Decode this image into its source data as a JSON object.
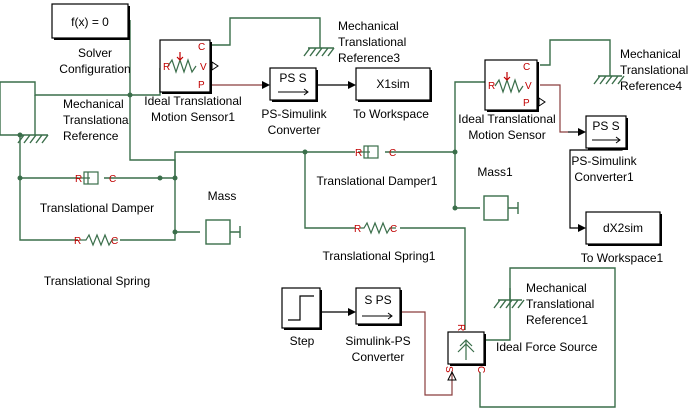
{
  "blocks": {
    "solver": {
      "expr": "f(x) = 0",
      "label_1": "Solver",
      "label_2": "Configuration"
    },
    "mech_ref": {
      "label_1": "Mechanical",
      "label_2": "Translationa",
      "label_3": "Reference"
    },
    "sensor1": {
      "label_1": "Ideal Translational",
      "label_2": "Motion Sensor1",
      "port_c": "C",
      "port_r": "R",
      "port_v": "V",
      "port_p": "P"
    },
    "mech_ref3": {
      "label_1": "Mechanical",
      "label_2": "Translational",
      "label_3": "Reference3"
    },
    "ps_conv": {
      "text": "PS S",
      "label_1": "PS-Simulink",
      "label_2": "Converter"
    },
    "x1sim": {
      "text": "X1sim",
      "label": "To Workspace"
    },
    "sensor2": {
      "label_1": "Ideal Translational",
      "label_2": "Motion Sensor",
      "port_c": "C",
      "port_r": "R",
      "port_v": "V",
      "port_p": "P"
    },
    "mech_ref4": {
      "label_1": "Mechanical",
      "label_2": "Translational",
      "label_3": "Reference4"
    },
    "ps_conv1": {
      "text": "PS S",
      "label_1": "PS-Simulink",
      "label_2": "Converter1"
    },
    "x2sim": {
      "text": "dX2sim",
      "label": "To Workspace1"
    },
    "damper": {
      "label": "Translational Damper",
      "port_r": "R",
      "port_c": "C"
    },
    "damper1": {
      "label": "Translational Damper1",
      "port_r": "R",
      "port_c": "C"
    },
    "spring": {
      "label": "Translational Spring",
      "port_r": "R",
      "port_c": "C"
    },
    "spring1": {
      "label": "Translational Spring1",
      "port_r": "R",
      "port_c": "C"
    },
    "mass": {
      "label": "Mass"
    },
    "mass1": {
      "label": "Mass1"
    },
    "step": {
      "label": "Step"
    },
    "sps_conv": {
      "text": "S PS",
      "label_1": "Simulink-PS",
      "label_2": "Converter"
    },
    "force": {
      "label": "Ideal Force Source",
      "port_r": "R",
      "port_c": "C",
      "port_s": "S"
    },
    "mech_ref1": {
      "label_1": "Mechanical",
      "label_2": "Translational",
      "label_3": "Reference1"
    }
  }
}
